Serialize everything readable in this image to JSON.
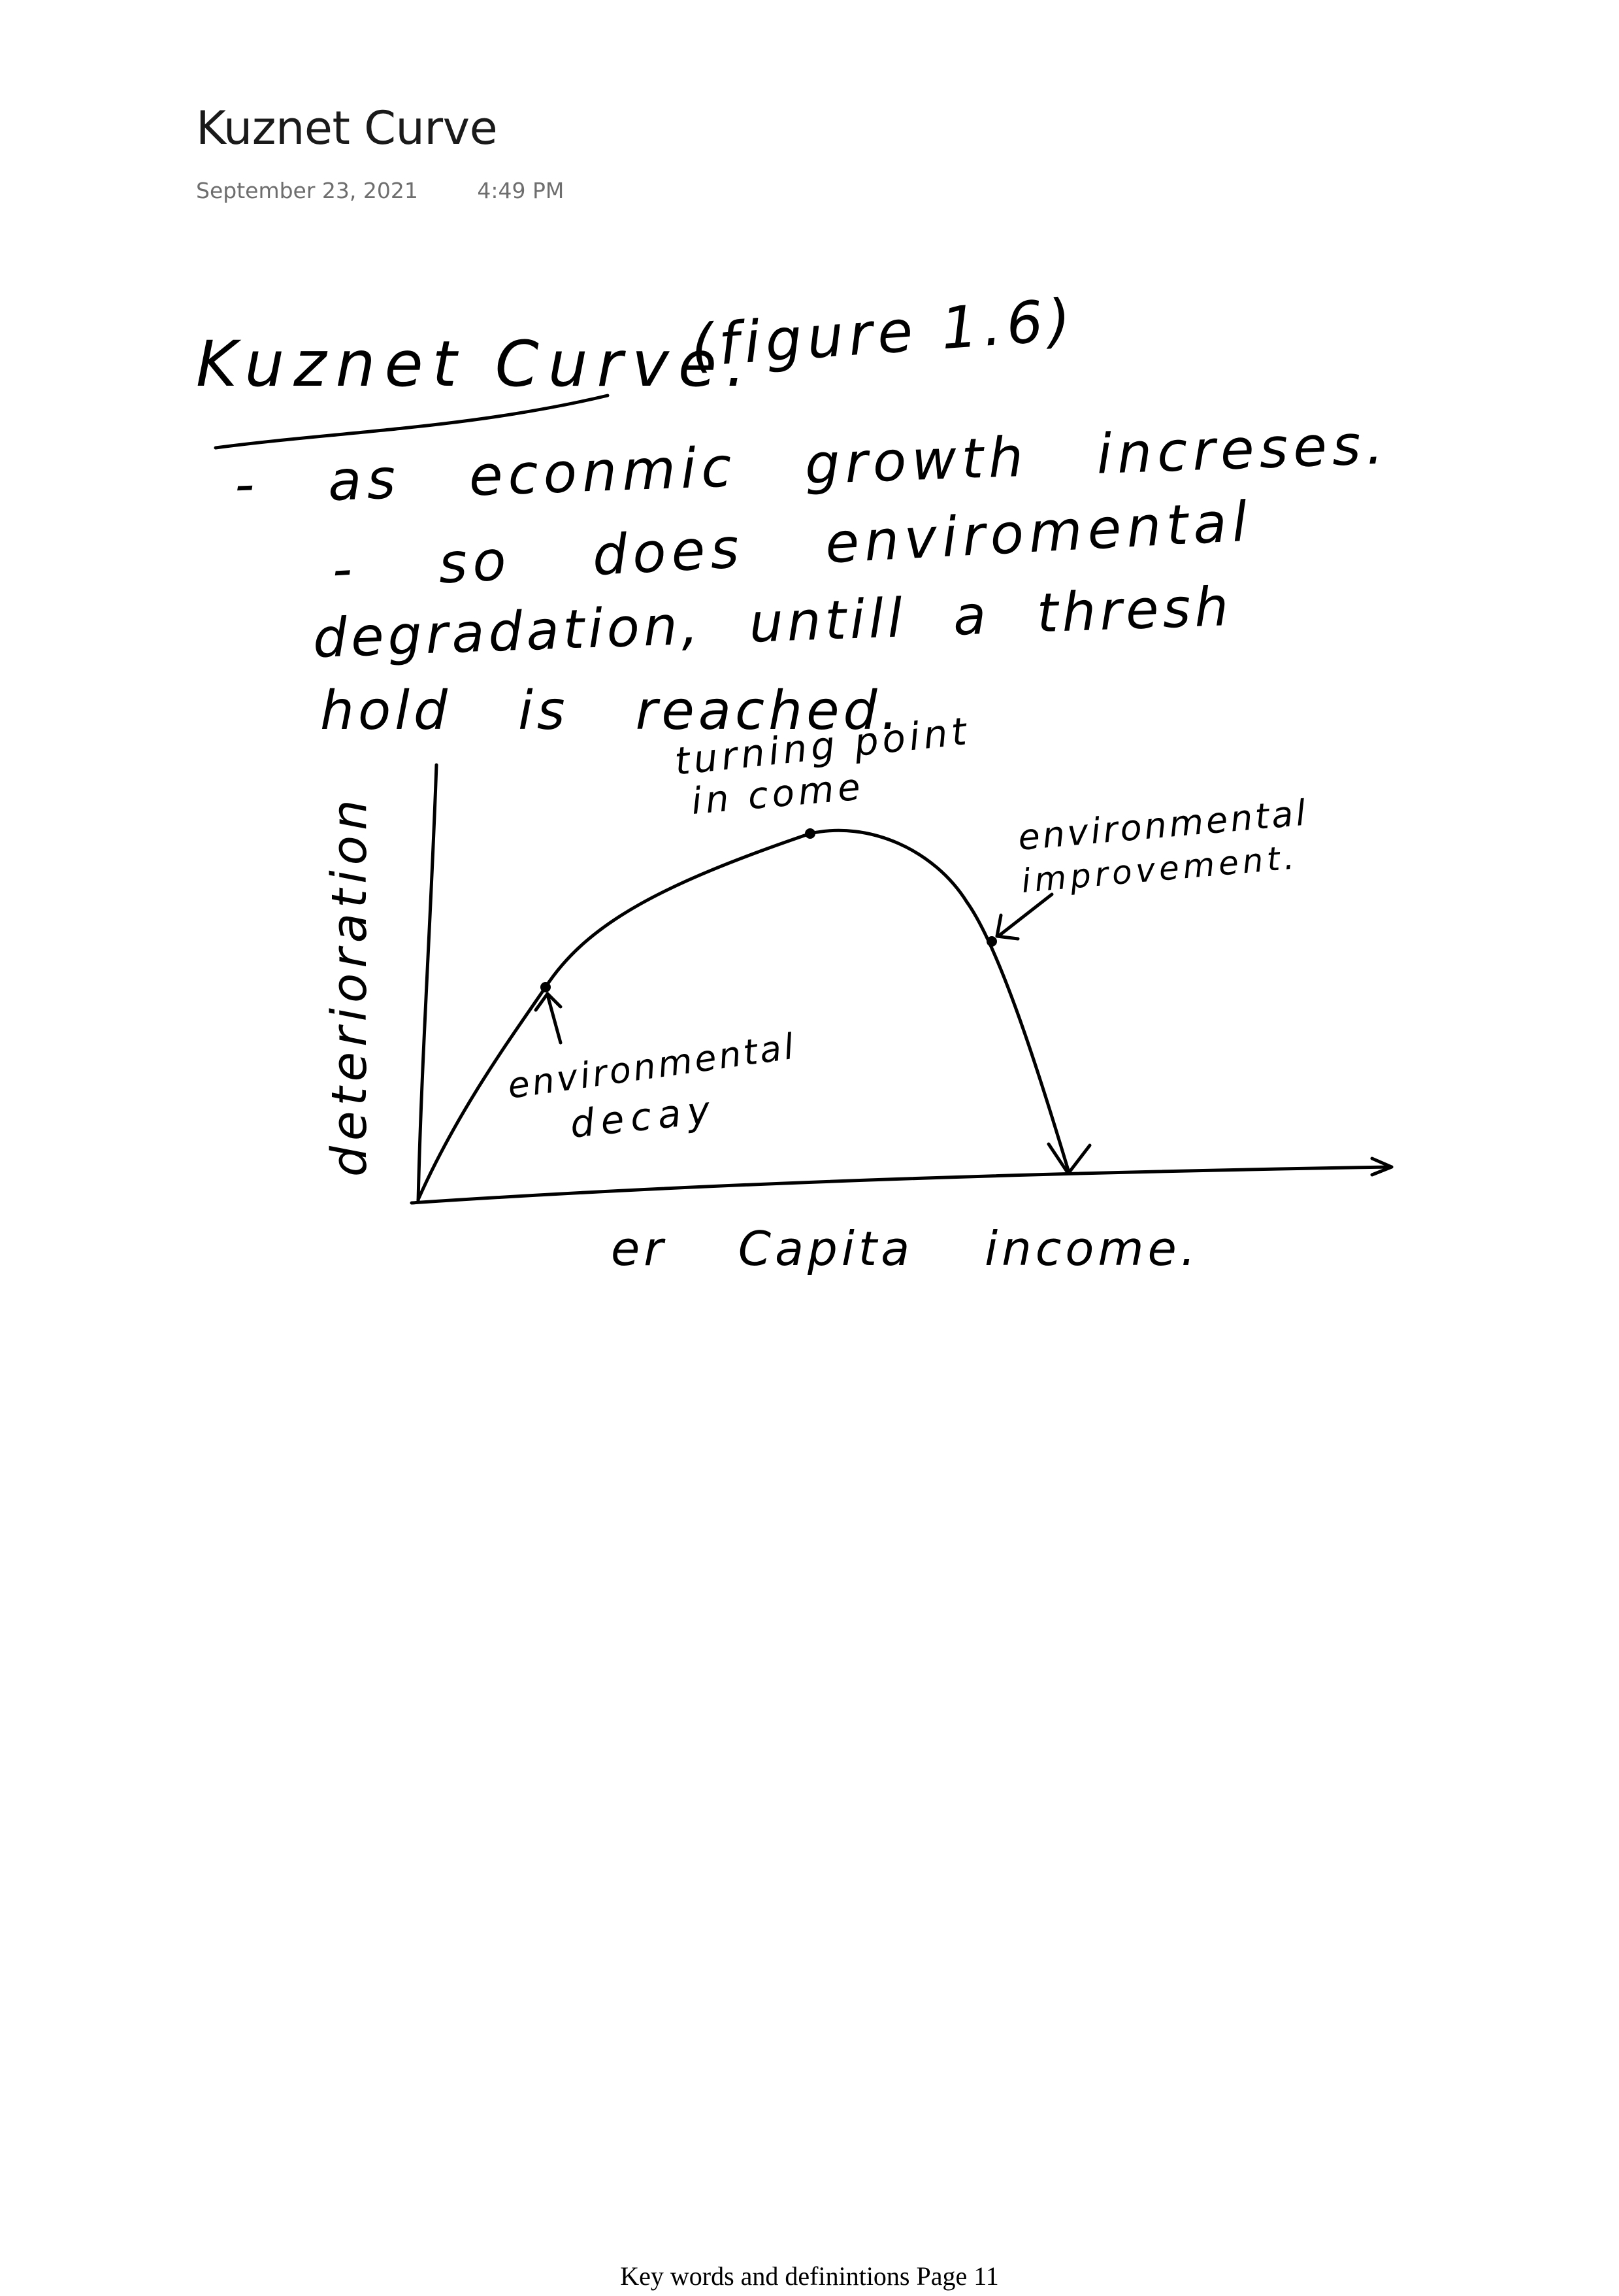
{
  "page": {
    "title": "Kuznet Curve",
    "date": "September 23, 2021",
    "time": "4:49 PM",
    "footer": "Key words and definintions Page 11"
  },
  "handwriting": {
    "heading": "Kuznet Curve.",
    "figure_ref": "(figure 1.6)",
    "line1": "- as econmic growth increses.",
    "line2": "- so does enviromental",
    "line3": "degradation, untill a thresh",
    "line4": "hold is reached."
  },
  "sketch": {
    "y_axis_label": "deterioration",
    "x_axis_label": "er Capita income.",
    "label_turning_point_1": "turning point",
    "label_turning_point_2": "in come",
    "label_decay_1": "environmental",
    "label_decay_2": "decay",
    "label_improvement_1": "environmental",
    "label_improvement_2": "improvement."
  }
}
